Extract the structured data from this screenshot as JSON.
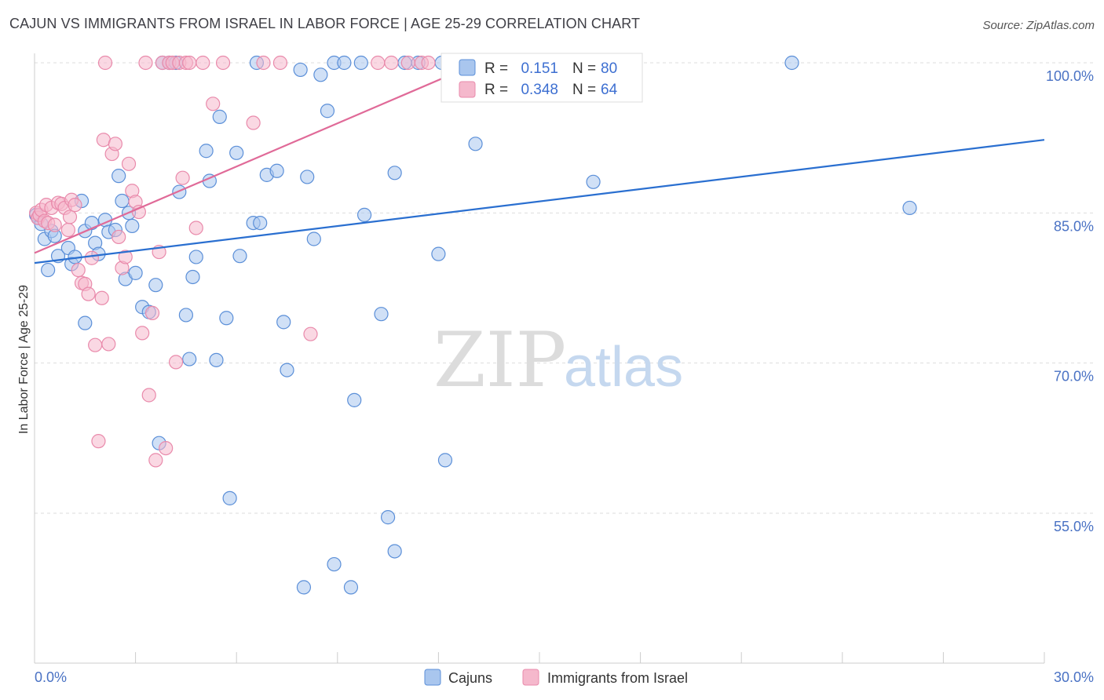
{
  "title": "CAJUN VS IMMIGRANTS FROM ISRAEL IN LABOR FORCE | AGE 25-29 CORRELATION CHART",
  "source": "Source: ZipAtlas.com",
  "watermark": {
    "zip": "ZIP",
    "atlas": "atlas"
  },
  "colors": {
    "cajun_fill": "#a9c6ee",
    "cajun_stroke": "#5b8fd8",
    "cajun_line": "#2a6fd0",
    "israel_fill": "#f5b8cc",
    "israel_stroke": "#e98aab",
    "israel_line": "#e06a98",
    "grid": "#dddddd",
    "axis_text": "#4a72c4"
  },
  "chart_data": {
    "type": "scatter",
    "xlabel": "",
    "ylabel": "In Labor Force | Age 25-29",
    "xlim": [
      0,
      30
    ],
    "ylim": [
      40,
      101.5
    ],
    "y_ticks": [
      55,
      70,
      85,
      100
    ],
    "y_tick_labels": [
      "55.0%",
      "70.0%",
      "85.0%",
      "100.0%"
    ],
    "x_tick_labels": [
      "0.0%",
      "30.0%"
    ],
    "legend": [
      {
        "r_label": "R =",
        "r_value": "0.151",
        "n_label": "N =",
        "n_value": "80"
      },
      {
        "r_label": "R =",
        "r_value": "0.348",
        "n_label": "N =",
        "n_value": "64"
      }
    ],
    "series": [
      {
        "name": "Cajuns",
        "trend": {
          "x": [
            0,
            30
          ],
          "y": [
            80.0,
            92.3
          ]
        },
        "points": [
          [
            0.05,
            84.8
          ],
          [
            0.1,
            84.5
          ],
          [
            0.2,
            83.9
          ],
          [
            0.3,
            82.4
          ],
          [
            0.4,
            79.3
          ],
          [
            0.5,
            83.2
          ],
          [
            0.6,
            82.7
          ],
          [
            0.7,
            80.7
          ],
          [
            1.0,
            81.5
          ],
          [
            1.1,
            79.9
          ],
          [
            1.2,
            80.6
          ],
          [
            1.4,
            86.2
          ],
          [
            1.5,
            74.0
          ],
          [
            1.5,
            83.2
          ],
          [
            1.7,
            84.0
          ],
          [
            1.8,
            82.0
          ],
          [
            1.9,
            80.9
          ],
          [
            2.1,
            84.3
          ],
          [
            2.2,
            83.1
          ],
          [
            2.4,
            83.3
          ],
          [
            2.5,
            88.7
          ],
          [
            2.6,
            86.2
          ],
          [
            2.7,
            78.4
          ],
          [
            2.8,
            85.0
          ],
          [
            2.9,
            83.7
          ],
          [
            3.0,
            79.0
          ],
          [
            3.2,
            75.6
          ],
          [
            3.4,
            75.1
          ],
          [
            3.6,
            77.8
          ],
          [
            3.7,
            62.0
          ],
          [
            3.8,
            100.0
          ],
          [
            4.0,
            100.0
          ],
          [
            4.2,
            100.0
          ],
          [
            4.3,
            87.1
          ],
          [
            4.5,
            74.8
          ],
          [
            4.6,
            70.4
          ],
          [
            4.7,
            78.6
          ],
          [
            4.8,
            80.6
          ],
          [
            5.1,
            91.2
          ],
          [
            5.2,
            88.2
          ],
          [
            5.4,
            70.3
          ],
          [
            5.5,
            94.6
          ],
          [
            5.7,
            74.5
          ],
          [
            5.8,
            56.5
          ],
          [
            6.0,
            91.0
          ],
          [
            6.1,
            80.7
          ],
          [
            6.5,
            84.0
          ],
          [
            6.6,
            100.0
          ],
          [
            6.7,
            84.0
          ],
          [
            6.9,
            88.8
          ],
          [
            7.2,
            89.2
          ],
          [
            7.4,
            74.1
          ],
          [
            7.5,
            69.3
          ],
          [
            7.9,
            99.3
          ],
          [
            8.0,
            47.6
          ],
          [
            8.1,
            88.6
          ],
          [
            8.3,
            82.4
          ],
          [
            8.5,
            98.8
          ],
          [
            8.7,
            95.2
          ],
          [
            8.9,
            100.0
          ],
          [
            8.9,
            49.9
          ],
          [
            9.2,
            100.0
          ],
          [
            9.4,
            47.6
          ],
          [
            9.5,
            66.3
          ],
          [
            9.7,
            100.0
          ],
          [
            9.8,
            84.8
          ],
          [
            10.3,
            74.9
          ],
          [
            10.5,
            54.6
          ],
          [
            10.7,
            89.0
          ],
          [
            10.7,
            51.2
          ],
          [
            11.0,
            100.0
          ],
          [
            11.4,
            100.0
          ],
          [
            12.0,
            80.9
          ],
          [
            12.2,
            60.3
          ],
          [
            12.1,
            100.0
          ],
          [
            13.1,
            91.9
          ],
          [
            14.6,
            100.0
          ],
          [
            16.6,
            88.1
          ],
          [
            22.5,
            100.0
          ],
          [
            26.0,
            85.5
          ]
        ]
      },
      {
        "name": "Immigrants from Israel",
        "trend": {
          "x": [
            0,
            13.2
          ],
          "y": [
            81.0,
            100.0
          ]
        },
        "points": [
          [
            0.05,
            85.0
          ],
          [
            0.1,
            84.5
          ],
          [
            0.15,
            84.8
          ],
          [
            0.2,
            85.3
          ],
          [
            0.3,
            84.2
          ],
          [
            0.35,
            85.8
          ],
          [
            0.4,
            84.0
          ],
          [
            0.5,
            85.5
          ],
          [
            0.6,
            83.8
          ],
          [
            0.7,
            86.0
          ],
          [
            0.8,
            85.9
          ],
          [
            0.9,
            85.5
          ],
          [
            1.0,
            83.3
          ],
          [
            1.05,
            84.6
          ],
          [
            1.1,
            86.3
          ],
          [
            1.2,
            85.8
          ],
          [
            1.3,
            79.3
          ],
          [
            1.4,
            78.0
          ],
          [
            1.5,
            77.9
          ],
          [
            1.6,
            76.9
          ],
          [
            1.7,
            80.5
          ],
          [
            1.8,
            71.8
          ],
          [
            1.9,
            62.2
          ],
          [
            2.0,
            76.5
          ],
          [
            2.05,
            92.3
          ],
          [
            2.1,
            100.0
          ],
          [
            2.2,
            71.9
          ],
          [
            2.3,
            90.9
          ],
          [
            2.4,
            91.9
          ],
          [
            2.5,
            82.6
          ],
          [
            2.6,
            79.5
          ],
          [
            2.7,
            80.6
          ],
          [
            2.8,
            89.9
          ],
          [
            2.9,
            87.2
          ],
          [
            3.0,
            86.1
          ],
          [
            3.1,
            85.1
          ],
          [
            3.2,
            73.0
          ],
          [
            3.3,
            100.0
          ],
          [
            3.4,
            66.8
          ],
          [
            3.5,
            75.0
          ],
          [
            3.6,
            60.3
          ],
          [
            3.7,
            81.1
          ],
          [
            3.8,
            100.0
          ],
          [
            3.9,
            61.5
          ],
          [
            4.0,
            100.0
          ],
          [
            4.1,
            100.0
          ],
          [
            4.2,
            70.1
          ],
          [
            4.3,
            100.0
          ],
          [
            4.4,
            88.5
          ],
          [
            4.5,
            100.0
          ],
          [
            4.6,
            100.0
          ],
          [
            4.8,
            83.5
          ],
          [
            5.0,
            100.0
          ],
          [
            5.3,
            95.9
          ],
          [
            5.6,
            100.0
          ],
          [
            6.5,
            94.0
          ],
          [
            6.8,
            100.0
          ],
          [
            7.3,
            100.0
          ],
          [
            8.2,
            72.9
          ],
          [
            10.2,
            100.0
          ],
          [
            10.6,
            100.0
          ],
          [
            11.1,
            100.0
          ],
          [
            11.5,
            100.0
          ],
          [
            11.7,
            100.0
          ]
        ]
      }
    ]
  }
}
